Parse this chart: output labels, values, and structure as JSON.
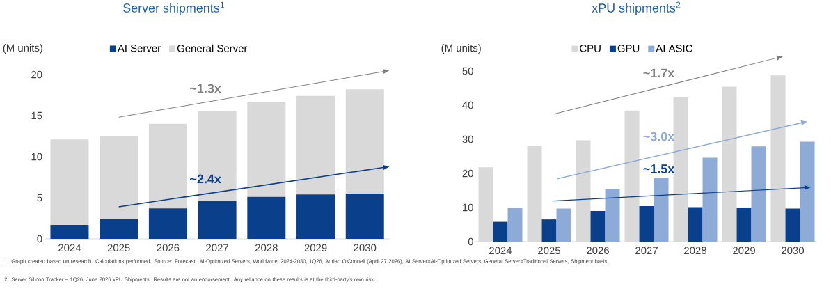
{
  "chart_data": [
    {
      "type": "bar",
      "title": "Server shipments$^{1}$",
      "ylabel": "(M units)",
      "stacked": true,
      "legend": "top",
      "categories": [
        "2024",
        "2025",
        "2026",
        "2027",
        "2028",
        "2029",
        "2030"
      ],
      "series": [
        {
          "name": "AI Server",
          "color": "#0a3f8c",
          "values": [
            1.7,
            2.4,
            3.7,
            4.6,
            5.1,
            5.4,
            5.5
          ]
        },
        {
          "name": "General Server",
          "color": "#d9d9d9",
          "values": [
            10.4,
            10.1,
            10.3,
            10.9,
            11.5,
            12.0,
            12.7
          ]
        }
      ],
      "ylim": [
        0,
        20
      ],
      "yticks": [
        0,
        5,
        10,
        15,
        20
      ],
      "annotations": [
        "~1.3x",
        "~2.4x",
        "1. Graph created based on research. Calculations performed. Source: Forecast: AI-Optimized Servers, Worldwide, 2024-2030, 1Q26, Adrian O'Connell (April 27 2026), AI Server=AI-Optimized Servers, General Server=Traditional Servers, Shipment basis."
      ]
    },
    {
      "type": "bar",
      "title": "xPU shipments$^{2}$",
      "ylabel": "(M units)",
      "legend": "top",
      "categories": [
        "2024",
        "2025",
        "2026",
        "2027",
        "2028",
        "2029",
        "2030"
      ],
      "series": [
        {
          "name": "CPU",
          "color": "#d9d9d9",
          "values": [
            21.8,
            28.0,
            29.7,
            38.4,
            42.3,
            45.4,
            48.7
          ]
        },
        {
          "name": "GPU",
          "color": "#0a3f8c",
          "values": [
            5.8,
            6.5,
            9.0,
            10.4,
            10.1,
            10.0,
            9.7
          ]
        },
        {
          "name": "AI ASIC",
          "color": "#8eaad6",
          "values": [
            9.9,
            9.7,
            15.5,
            18.8,
            24.6,
            27.9,
            29.3
          ]
        }
      ],
      "ylim": [
        0,
        50
      ],
      "yticks": [
        0,
        10,
        20,
        30,
        40,
        50
      ],
      "annotations": [
        "~1.7x",
        "~3.0x",
        "~1.5x",
        "2. Server Silicon Tracker – 1Q26, June 2026 xPU Shipments. Results are not an endorsement. Any reliance on these results is at the third-party's own risk."
      ]
    }
  ]
}
